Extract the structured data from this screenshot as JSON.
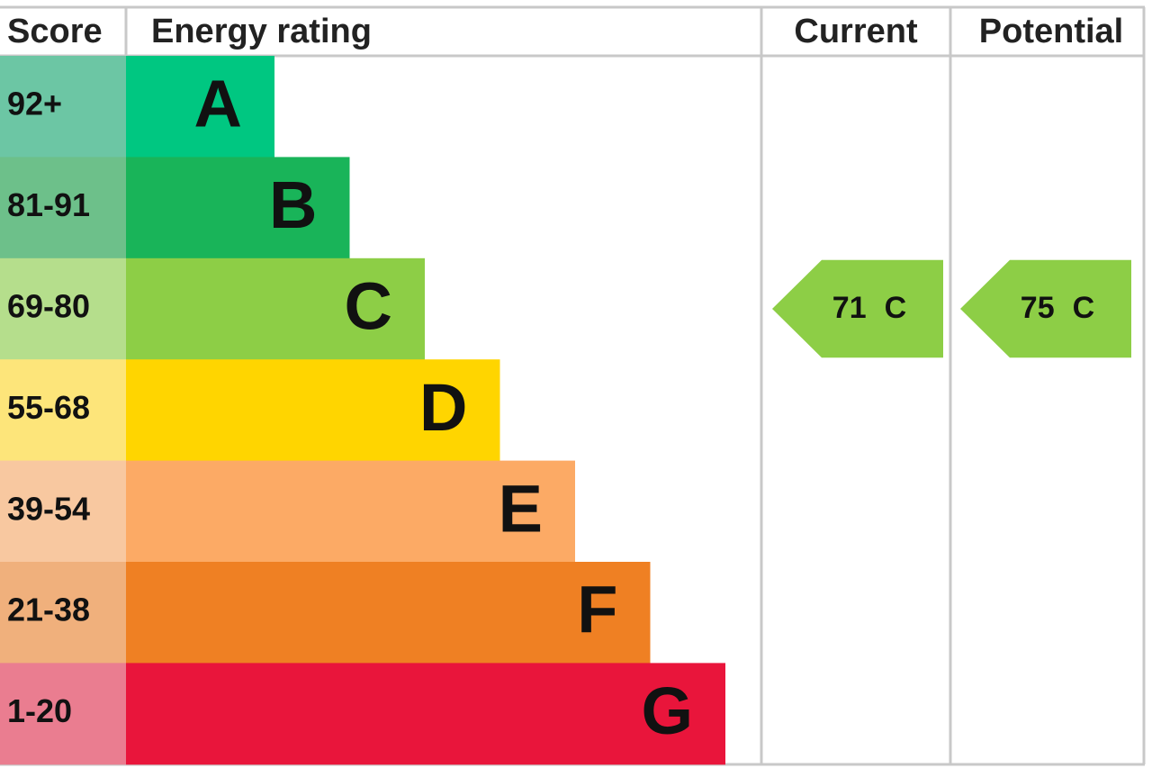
{
  "header": {
    "score": "Score",
    "rating": "Energy rating",
    "current": "Current",
    "potential": "Potential"
  },
  "bands": [
    {
      "score": "92+",
      "letter": "A",
      "color": "#00c781",
      "score_color": "#6cc6a4"
    },
    {
      "score": "81-91",
      "letter": "B",
      "color": "#19b459",
      "score_color": "#6dc08a"
    },
    {
      "score": "69-80",
      "letter": "C",
      "color": "#8dce46",
      "score_color": "#b5de8c"
    },
    {
      "score": "55-68",
      "letter": "D",
      "color": "#ffd500",
      "score_color": "#fde57a"
    },
    {
      "score": "39-54",
      "letter": "E",
      "color": "#fcaa65",
      "score_color": "#f8c8a0"
    },
    {
      "score": "21-38",
      "letter": "F",
      "color": "#ef8023",
      "score_color": "#f0b07c"
    },
    {
      "score": "1-20",
      "letter": "G",
      "color": "#e9153b",
      "score_color": "#ea7d90"
    }
  ],
  "current": {
    "value": 71,
    "rating": "C"
  },
  "potential": {
    "value": 75,
    "rating": "C"
  }
}
